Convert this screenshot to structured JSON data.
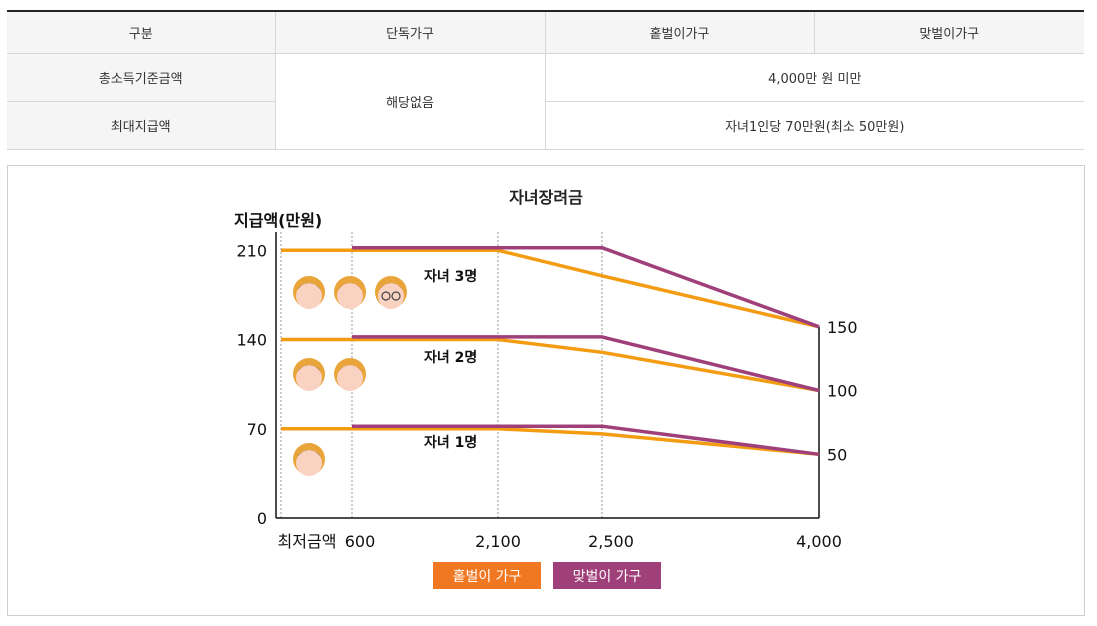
{
  "table": {
    "headers": [
      "구분",
      "단독가구",
      "홑벌이가구",
      "맞벌이가구"
    ],
    "rows": [
      {
        "label": "총소득기준금액",
        "single": "해당없음",
        "value": "4,000만 원 미만"
      },
      {
        "label": "최대지급액",
        "value": "자녀1인당 70만원(최소 50만원)"
      }
    ]
  },
  "colors": {
    "single_income": "#f39c12",
    "dual_income": "#a0407a",
    "legend_single": "#f07822",
    "legend_dual": "#a0407a"
  },
  "chart_data": {
    "type": "line",
    "title": "자녀장려금",
    "ylabel": "지급액(만원)",
    "xlabel": "",
    "x_tick_labels": [
      "최저금액",
      "600",
      "2,100",
      "2,500",
      "4,000"
    ],
    "x_ticks": [
      0,
      600,
      2100,
      2500,
      4000
    ],
    "y_ticks": [
      0,
      70,
      140,
      210
    ],
    "y_tick_labels": [
      "0",
      "70",
      "140",
      "210"
    ],
    "ylim": [
      0,
      240
    ],
    "right_labels": [
      "150",
      "100",
      "50"
    ],
    "legend": [
      "홑벌이 가구",
      "맞벌이 가구"
    ],
    "groups": [
      {
        "caption": "자녀 3명",
        "children": 3
      },
      {
        "caption": "자녀 2명",
        "children": 2
      },
      {
        "caption": "자녀 1명",
        "children": 1
      }
    ],
    "series": [
      {
        "group": 0,
        "household": "single",
        "points": [
          [
            0,
            210
          ],
          [
            2100,
            210
          ],
          [
            2500,
            190
          ],
          [
            4000,
            150
          ]
        ]
      },
      {
        "group": 0,
        "household": "dual",
        "points": [
          [
            600,
            212
          ],
          [
            2500,
            212
          ],
          [
            4000,
            150
          ]
        ]
      },
      {
        "group": 1,
        "household": "single",
        "points": [
          [
            0,
            140
          ],
          [
            2100,
            140
          ],
          [
            2500,
            130
          ],
          [
            4000,
            100
          ]
        ]
      },
      {
        "group": 1,
        "household": "dual",
        "points": [
          [
            600,
            142
          ],
          [
            2500,
            142
          ],
          [
            4000,
            100
          ]
        ]
      },
      {
        "group": 2,
        "household": "single",
        "points": [
          [
            0,
            70
          ],
          [
            2100,
            70
          ],
          [
            2500,
            66
          ],
          [
            4000,
            50
          ]
        ]
      },
      {
        "group": 2,
        "household": "dual",
        "points": [
          [
            600,
            72
          ],
          [
            2500,
            72
          ],
          [
            4000,
            50
          ]
        ]
      }
    ]
  }
}
